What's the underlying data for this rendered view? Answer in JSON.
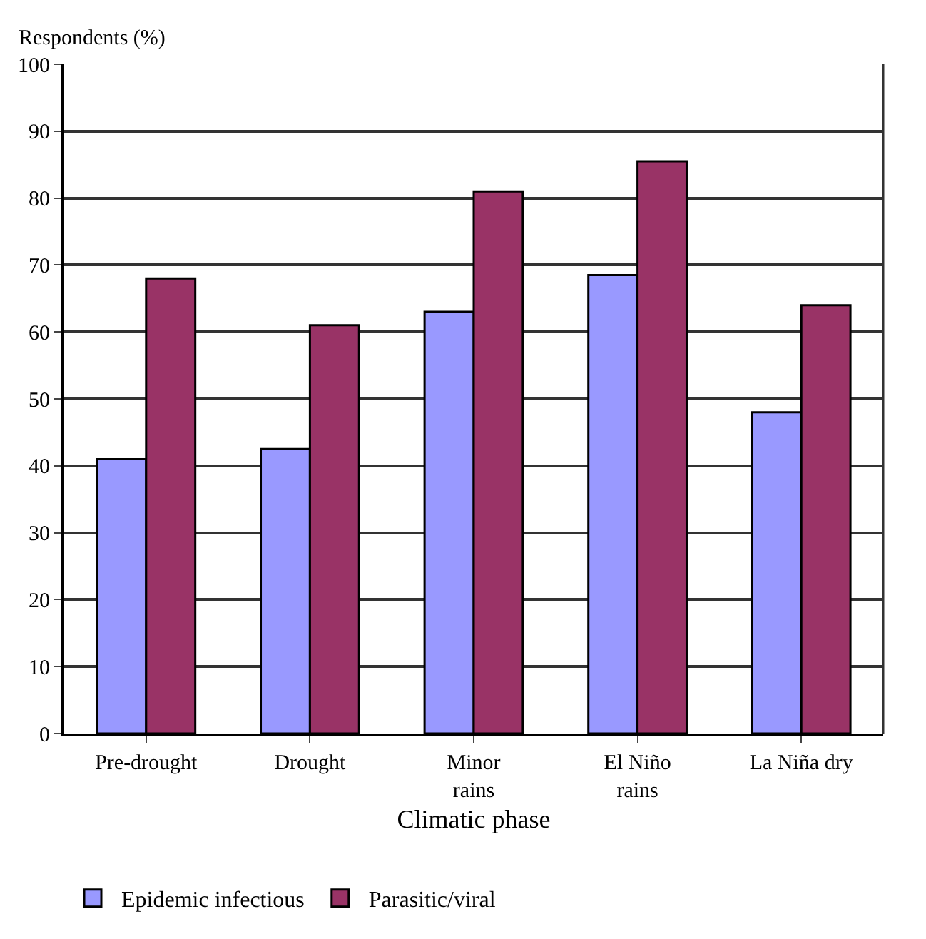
{
  "chart_data": {
    "type": "bar",
    "ylabel": "Respondents (%)",
    "xlabel": "Climatic phase",
    "categories": [
      "Pre-drought",
      "Drought",
      "Minor\nrains",
      "El Niño\nrains",
      "La Niña dry"
    ],
    "series": [
      {
        "name": "Epidemic infectious",
        "color": "#9999ff",
        "values": [
          41,
          42.5,
          63,
          68.5,
          48
        ]
      },
      {
        "name": "Parasitic/viral",
        "color": "#993366",
        "values": [
          68,
          61,
          81,
          85.5,
          64
        ]
      }
    ],
    "ylim": [
      0,
      100
    ],
    "yticks": [
      0,
      10,
      20,
      30,
      40,
      50,
      60,
      70,
      80,
      90,
      100
    ],
    "grid": "y",
    "legend": "bottom"
  }
}
